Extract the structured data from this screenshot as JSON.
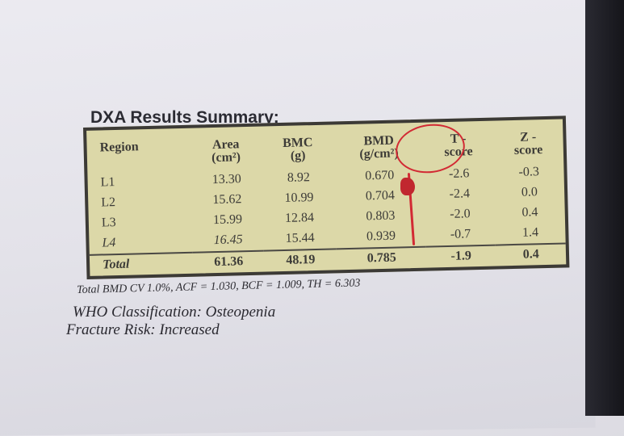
{
  "title": "DXA Results Summary:",
  "table": {
    "headers": {
      "region": "Region",
      "area": "Area",
      "area_unit": "(cm²)",
      "bmc": "BMC",
      "bmc_unit": "(g)",
      "bmd": "BMD",
      "bmd_unit": "(g/cm²)",
      "tscore_a": "T -",
      "tscore_b": "score",
      "zscore_a": "Z -",
      "zscore_b": "score"
    },
    "rows": [
      {
        "region": "L1",
        "area": "13.30",
        "bmc": "8.92",
        "bmd": "0.670",
        "t": "-2.6",
        "z": "-0.3"
      },
      {
        "region": "L2",
        "area": "15.62",
        "bmc": "10.99",
        "bmd": "0.704",
        "t": "-2.4",
        "z": "0.0"
      },
      {
        "region": "L3",
        "area": "15.99",
        "bmc": "12.84",
        "bmd": "0.803",
        "t": "-2.0",
        "z": "0.4"
      },
      {
        "region": "L4",
        "area": "16.45",
        "bmc": "15.44",
        "bmd": "0.939",
        "t": "-0.7",
        "z": "1.4"
      }
    ],
    "total": {
      "region": "Total",
      "area": "61.36",
      "bmc": "48.19",
      "bmd": "0.785",
      "t": "-1.9",
      "z": "0.4"
    }
  },
  "footnote": "Total BMD CV 1.0%, ACF = 1.030, BCF = 1.009, TH = 6.303",
  "who_classification": "WHO Classification: Osteopenia",
  "fracture_risk": "Fracture Risk: Increased",
  "annotation_color": "#d22a34",
  "table_color": "#dcd8a8"
}
